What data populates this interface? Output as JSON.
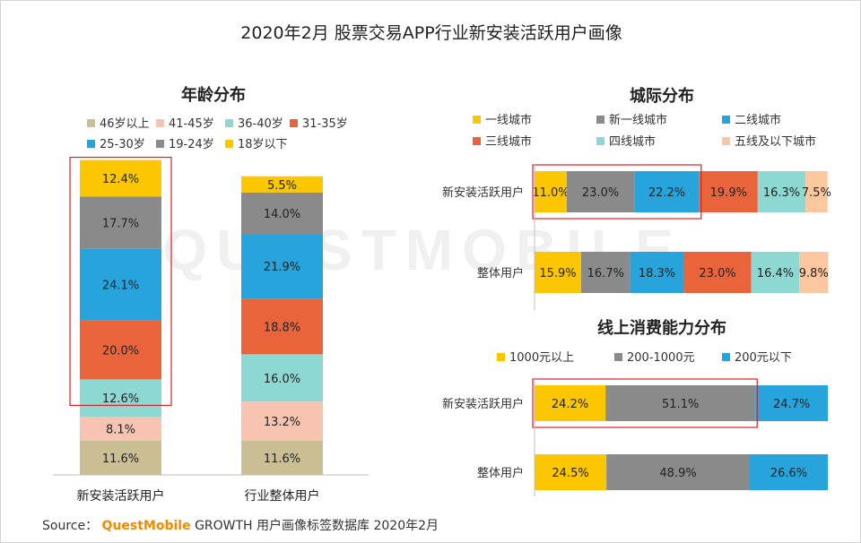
{
  "page_title": "2020年2月 股票交易APP行业新安装活跃用户画像",
  "watermark": "QUESTMOBILE",
  "source": {
    "label": "Source：",
    "brand": "QuestMobile",
    "text": "GROWTH 用户画像标签数据库 2020年2月"
  },
  "chart_data": [
    {
      "type": "bar",
      "stacked": true,
      "orientation": "vertical",
      "title": "年龄分布",
      "legend_position": "top",
      "categories": [
        "新安装活跃用户",
        "行业整体用户"
      ],
      "value_format": "percent",
      "series": [
        {
          "name": "46岁以上",
          "color": "#c9bf93",
          "values": [
            11.6,
            11.6
          ]
        },
        {
          "name": "41-45岁",
          "color": "#f7c4b2",
          "values": [
            8.1,
            13.2
          ]
        },
        {
          "name": "36-40岁",
          "color": "#8ed8d3",
          "values": [
            12.6,
            16.0
          ]
        },
        {
          "name": "31-35岁",
          "color": "#e9643b",
          "values": [
            20.0,
            18.8
          ]
        },
        {
          "name": "25-30岁",
          "color": "#27a4dc",
          "values": [
            24.1,
            21.9
          ]
        },
        {
          "name": "19-24岁",
          "color": "#8a8a8a",
          "values": [
            17.7,
            14.0
          ]
        },
        {
          "name": "18岁以下",
          "color": "#fcc600",
          "values": [
            12.4,
            5.5
          ]
        }
      ],
      "highlight": {
        "category_index": 0,
        "series": [
          "31-35岁",
          "25-30岁",
          "19-24岁",
          "18岁以下"
        ]
      }
    },
    {
      "type": "bar",
      "stacked": true,
      "orientation": "horizontal",
      "title": "城际分布",
      "legend_position": "top",
      "categories": [
        "新安装活跃用户",
        "整体用户"
      ],
      "value_format": "percent",
      "series": [
        {
          "name": "一线城市",
          "color": "#fcc600",
          "values": [
            11.0,
            15.9
          ]
        },
        {
          "name": "新一线城市",
          "color": "#8a8a8a",
          "values": [
            23.0,
            16.7
          ]
        },
        {
          "name": "二线城市",
          "color": "#27a4dc",
          "values": [
            22.2,
            18.3
          ]
        },
        {
          "name": "三线城市",
          "color": "#e9643b",
          "values": [
            19.9,
            23.0
          ]
        },
        {
          "name": "四线城市",
          "color": "#8ed8d3",
          "values": [
            16.3,
            16.4
          ]
        },
        {
          "name": "五线及以下城市",
          "color": "#fbc79f",
          "values": [
            7.5,
            9.8
          ]
        }
      ],
      "highlight": {
        "category_index": 0,
        "series": [
          "一线城市",
          "新一线城市",
          "二线城市"
        ]
      }
    },
    {
      "type": "bar",
      "stacked": true,
      "orientation": "horizontal",
      "title": "线上消费能力分布",
      "legend_position": "top",
      "categories": [
        "新安装活跃用户",
        "整体用户"
      ],
      "value_format": "percent",
      "series": [
        {
          "name": "1000元以上",
          "color": "#fcc600",
          "values": [
            24.2,
            24.5
          ]
        },
        {
          "name": "200-1000元",
          "color": "#8a8a8a",
          "values": [
            51.1,
            48.9
          ]
        },
        {
          "name": "200元以下",
          "color": "#27a4dc",
          "values": [
            24.7,
            26.6
          ]
        }
      ],
      "highlight": {
        "category_index": 0,
        "series": [
          "1000元以上",
          "200-1000元"
        ]
      }
    }
  ]
}
